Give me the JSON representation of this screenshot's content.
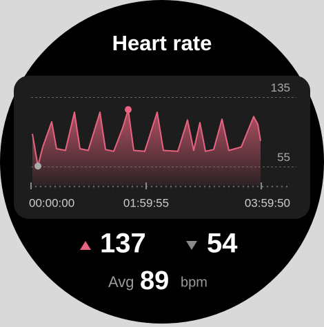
{
  "title": "Heart rate",
  "chart_data": {
    "type": "line",
    "x": [
      86,
      431,
      732,
      1292,
      1594,
      2154,
      2714,
      3059,
      3576,
      4308,
      4653,
      5170,
      5730,
      6074,
      6419,
      7108,
      7884,
      8272,
      9177,
      9780,
      10168,
      10556,
      10900,
      11417,
      11934,
      12365,
      13140,
      13916,
      14174,
      14346
    ],
    "series": [
      {
        "color": "#e8637f",
        "values": [
          93,
          56,
          78,
          107,
          76,
          74,
          118,
          76,
          74,
          118,
          75,
          73,
          100,
          121,
          74,
          73,
          118,
          74,
          73,
          109,
          74,
          106,
          73,
          75,
          110,
          74,
          78,
          113,
          104,
          85
        ]
      }
    ],
    "xlim": [
      0,
      14390
    ],
    "xticks": [
      {
        "value": 0,
        "label": "00:00:00"
      },
      {
        "value": 7195,
        "label": "01:59:55"
      },
      {
        "value": 14390,
        "label": "03:59:50"
      }
    ],
    "ylim": [
      34,
      156
    ],
    "yticks": [
      55,
      135
    ],
    "grid": true
  },
  "max": 137,
  "min": 54,
  "avg": {
    "label": "Avg",
    "value": 89,
    "unit": "bpm"
  }
}
